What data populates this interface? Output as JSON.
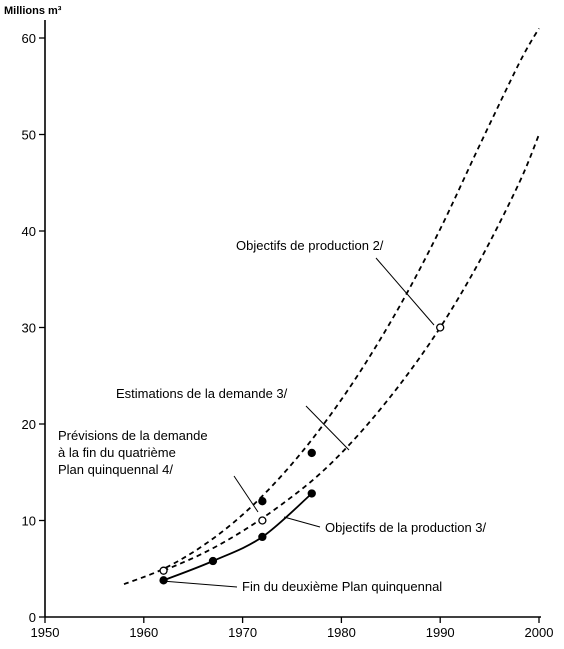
{
  "chart_data": {
    "type": "line",
    "ylabel": "Millions m³",
    "xlim": [
      1950,
      2000
    ],
    "ylim": [
      0,
      60
    ],
    "x_ticks": [
      "1950",
      "1960",
      "1970",
      "1980",
      "1990",
      "2000"
    ],
    "y_ticks": [
      "0",
      "10",
      "20",
      "30",
      "40",
      "50",
      "60"
    ],
    "grid": false,
    "series": [
      {
        "label": "Objectifs de production 2/",
        "style": "dashed",
        "x": [
          1958,
          1962,
          1966,
          1970,
          1974,
          1978,
          1982,
          1986,
          1990,
          1994,
          1998,
          2000
        ],
        "y": [
          3.4,
          5.0,
          7.4,
          10.6,
          14.7,
          19.7,
          25.6,
          32.4,
          40.2,
          48.9,
          57.4,
          61.0
        ],
        "markers": [
          {
            "x": 1972,
            "y": 12.0,
            "style": "filled"
          },
          {
            "x": 1977,
            "y": 17.0,
            "style": "filled"
          }
        ]
      },
      {
        "label": "Objectifs de la production 3/",
        "style": "dashed",
        "x": [
          1962,
          1966,
          1970,
          1974,
          1978,
          1982,
          1986,
          1990,
          1994,
          1998,
          2000
        ],
        "y": [
          4.8,
          6.6,
          8.9,
          11.7,
          15.0,
          19.2,
          24.2,
          30.0,
          36.9,
          45.0,
          50.0
        ],
        "markers": [
          {
            "x": 1962,
            "y": 4.8,
            "style": "open"
          },
          {
            "x": 1972,
            "y": 10.0,
            "style": "open"
          },
          {
            "x": 1990,
            "y": 30.0,
            "style": "open"
          }
        ]
      },
      {
        "label": "Fin du deuxième Plan quinquennal",
        "style": "solid",
        "x": [
          1962,
          1967,
          1972,
          1977
        ],
        "y": [
          3.8,
          5.8,
          8.3,
          12.8
        ],
        "markers": [
          {
            "x": 1962,
            "y": 3.8,
            "style": "filled"
          },
          {
            "x": 1967,
            "y": 5.8,
            "style": "filled"
          },
          {
            "x": 1972,
            "y": 8.3,
            "style": "filled"
          },
          {
            "x": 1977,
            "y": 12.8,
            "style": "filled"
          }
        ]
      }
    ],
    "annotations": [
      {
        "text": "Objectifs de production 2/"
      },
      {
        "text": "Estimations de la demande 3/"
      },
      {
        "text_lines": [
          "Prévisions de la demande",
          "à la fin du quatrième",
          "Plan quinquennal 4/"
        ]
      },
      {
        "text": "Objectifs de la production 3/"
      },
      {
        "text": "Fin du deuxième Plan quinquennal"
      }
    ]
  }
}
